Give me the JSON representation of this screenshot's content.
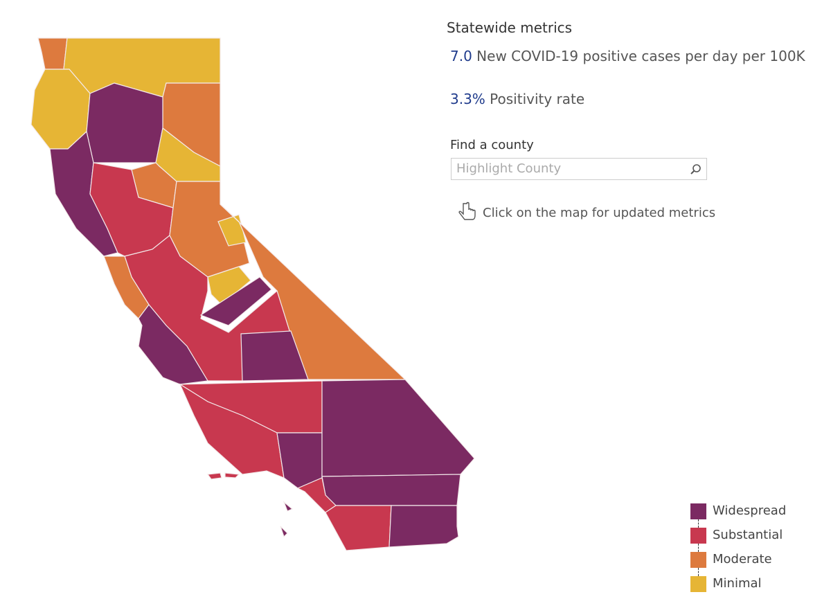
{
  "panel": {
    "title": "Statewide metrics",
    "metrics": [
      {
        "value": "7.0",
        "label": "New COVID-19 positive cases per day per 100K"
      },
      {
        "value": "3.3%",
        "label": "Positivity rate"
      }
    ],
    "search_label": "Find a county",
    "search_placeholder": "Highlight County",
    "hint": "Click on the map for updated metrics"
  },
  "legend": [
    {
      "label": "Widespread",
      "color": "#7b2a62"
    },
    {
      "label": "Substantial",
      "color": "#c8384f"
    },
    {
      "label": "Moderate",
      "color": "#dd7a3e"
    },
    {
      "label": "Minimal",
      "color": "#e6b535"
    }
  ]
}
